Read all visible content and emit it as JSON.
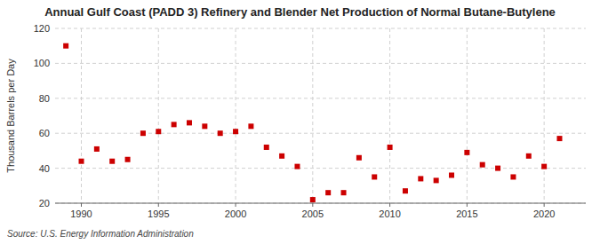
{
  "chart_data": {
    "type": "scatter",
    "title": "Annual Gulf Coast (PADD 3) Refinery and Blender Net Production of Normal Butane-Butylene",
    "y_label": "Thousand Barrels per Day",
    "annotations": [
      "Source: U.S. Energy Information Administration"
    ],
    "x": [
      1989,
      1990,
      1991,
      1992,
      1993,
      1994,
      1995,
      1996,
      1997,
      1998,
      1999,
      2000,
      2001,
      2002,
      2003,
      2004,
      2005,
      2006,
      2007,
      2008,
      2009,
      2010,
      2011,
      2012,
      2013,
      2014,
      2015,
      2016,
      2017,
      2018,
      2019,
      2020,
      2021
    ],
    "values": [
      110,
      44,
      51,
      44,
      45,
      60,
      61,
      65,
      66,
      64,
      60,
      61,
      64,
      52,
      47,
      41,
      22,
      26,
      26,
      46,
      35,
      52,
      27,
      34,
      33,
      36,
      49,
      42,
      40,
      35,
      47,
      41,
      57
    ],
    "color": "#cc0000",
    "marker": "square",
    "xlim": [
      1988.3,
      2022.7
    ],
    "xticks": [
      1990,
      1995,
      2000,
      2005,
      2010,
      2015,
      2020
    ],
    "ylim": [
      20,
      120
    ],
    "yticks": [
      20,
      40,
      60,
      80,
      100,
      120
    ],
    "grid": true
  }
}
